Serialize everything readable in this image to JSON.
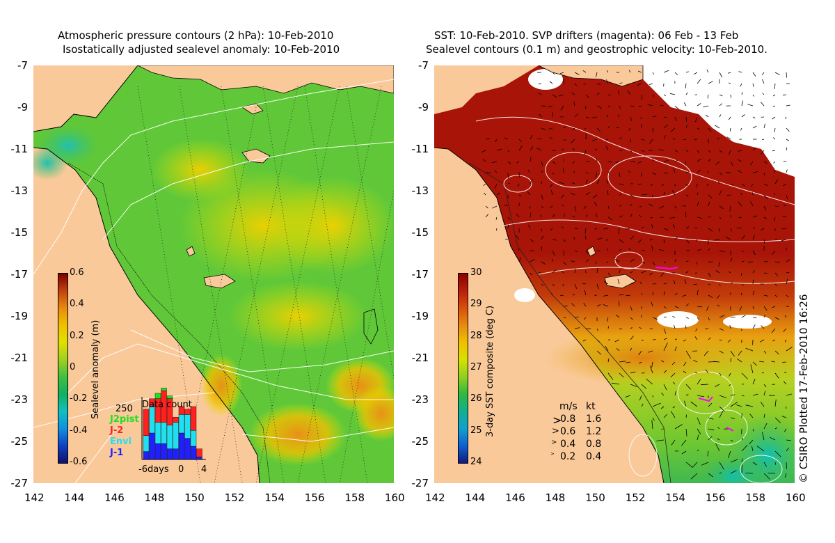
{
  "left_panel": {
    "title_line1": "Atmospheric pressure contours (2 hPa): 10-Feb-2010",
    "title_line2": "Isostatically adjusted sealevel anomaly: 10-Feb-2010",
    "colorbar_label": "Sealevel anomaly (m)",
    "colorbar_ticks": [
      "0.6",
      "0.4",
      "0.2",
      "0",
      "-0.2",
      "-0.4",
      "-0.6"
    ],
    "colorbar_stops": [
      "#7a0000",
      "#c0420f",
      "#e88a10",
      "#f0c000",
      "#e0e000",
      "#a0d020",
      "#40c040",
      "#10b060",
      "#10c0c0",
      "#1090e0",
      "#1040c0",
      "#101070"
    ],
    "inset": {
      "title": "Data count",
      "y_max_label": "250",
      "x_labels": [
        "-6days",
        "0",
        "4"
      ],
      "missions": [
        {
          "name": "J2pist",
          "color": "#20e020"
        },
        {
          "name": "J-2",
          "color": "#ff2020"
        },
        {
          "name": "Envi",
          "color": "#20e0f0"
        },
        {
          "name": "J-1",
          "color": "#2020ff"
        }
      ],
      "bars": [
        {
          "day": -6,
          "J2pist": 0,
          "J-2": 100,
          "Envi": 60,
          "J-1": 30
        },
        {
          "day": -5,
          "J2pist": 0,
          "J-2": 30,
          "Envi": 100,
          "J-1": 100
        },
        {
          "day": -4,
          "J2pist": 20,
          "J-2": 90,
          "Envi": 80,
          "J-1": 60
        },
        {
          "day": -3,
          "J2pist": 10,
          "J-2": 120,
          "Envi": 80,
          "J-1": 60
        },
        {
          "day": -2,
          "J2pist": 10,
          "J-2": 100,
          "Envi": 90,
          "J-1": 40
        },
        {
          "day": -1,
          "J2pist": 0,
          "J-2": 20,
          "Envi": 100,
          "J-1": 40
        },
        {
          "day": 0,
          "J2pist": 0,
          "J-2": 30,
          "Envi": 70,
          "J-1": 100
        },
        {
          "day": 1,
          "J2pist": 0,
          "J-2": 20,
          "Envi": 90,
          "J-1": 80
        },
        {
          "day": 2,
          "J2pist": 0,
          "J-2": 90,
          "Envi": 60,
          "J-1": 50
        },
        {
          "day": 3,
          "J2pist": 0,
          "J-2": 30,
          "Envi": 0,
          "J-1": 10
        }
      ]
    }
  },
  "right_panel": {
    "title_line1": "SST: 10-Feb-2010. SVP drifters (magenta): 06 Feb - 13 Feb",
    "title_line2": "Sealevel contours (0.1 m) and geostrophic velocity: 10-Feb-2010.",
    "colorbar_label": "3-day SST composite (deg C)",
    "colorbar_ticks": [
      "30",
      "29",
      "28",
      "27",
      "26",
      "25",
      "24"
    ],
    "colorbar_stops": [
      "#8b0000",
      "#b81f0a",
      "#d8500c",
      "#e88a10",
      "#f0c000",
      "#d8e000",
      "#90d020",
      "#30b840",
      "#10b090",
      "#10a0d0",
      "#1060d0",
      "#101a80"
    ],
    "velocity_legend": {
      "header_ms": "m/s",
      "header_kt": "kt",
      "rows": [
        {
          "ms": "0.8",
          "kt": "1.6"
        },
        {
          "ms": "0.6",
          "kt": "1.2"
        },
        {
          "ms": "0.4",
          "kt": "0.8"
        },
        {
          "ms": "0.2",
          "kt": "0.4"
        }
      ]
    }
  },
  "axes": {
    "x_ticks": [
      "142",
      "144",
      "146",
      "148",
      "150",
      "152",
      "154",
      "156",
      "158",
      "160"
    ],
    "y_ticks": [
      "-7",
      "-9",
      "-11",
      "-13",
      "-15",
      "-17",
      "-19",
      "-21",
      "-23",
      "-25",
      "-27"
    ]
  },
  "credit": "© CSIRO Plotted 17-Feb-2010 16:26",
  "colors": {
    "land": "#f9c99a",
    "sla_base": "#60c838",
    "sst_warm": "#a81408",
    "sst_green": "#90d020"
  }
}
